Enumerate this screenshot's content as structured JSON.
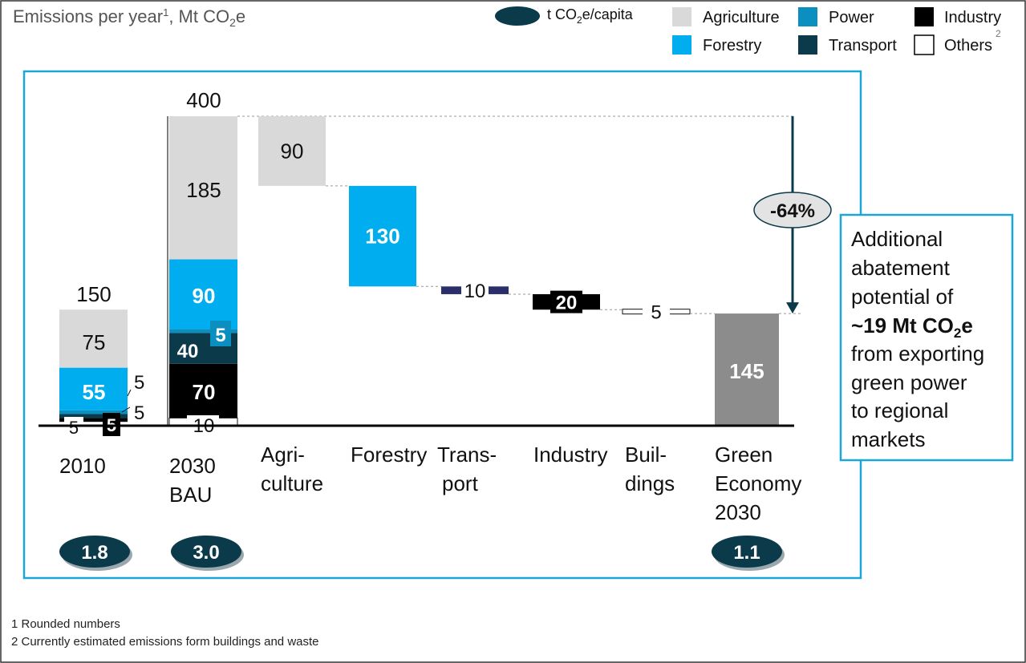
{
  "title": "Emissions per year",
  "title_sup": "1",
  "title_unit": "Mt CO",
  "title_unit_sub": "2",
  "title_unit_end": "e",
  "colors": {
    "agriculture": "#d9d9d9",
    "power": "#0a8fc0",
    "industry": "#000000",
    "forestry": "#00aeef",
    "transport": "#0b3a4b",
    "others": "#ffffff",
    "total": "#8c8c8c",
    "frame": "#1aa7d8",
    "capita": "#0b3a4b",
    "pct_badge": "#e3e3e3",
    "small_bar": "#2a2f6b"
  },
  "legend": {
    "capita_pre": "t CO",
    "capita_sub": "2",
    "capita_post": "e/capita",
    "agriculture": "Agriculture",
    "power": "Power",
    "industry": "Industry",
    "forestry": "Forestry",
    "transport": "Transport",
    "others": "Others",
    "others_sup": "2"
  },
  "chart_data": {
    "type": "bar",
    "subtype": "waterfall",
    "ylim": [
      0,
      400
    ],
    "categories": [
      "2010",
      "2030 BAU",
      "Agri-culture",
      "Forestry",
      "Trans-port",
      "Industry",
      "Buil-dings",
      "Green Economy 2030"
    ],
    "category_lines": [
      [
        "2010"
      ],
      [
        "2030",
        "BAU"
      ],
      [
        "Agri-",
        "culture"
      ],
      [
        "Forestry"
      ],
      [
        "Trans-",
        "port"
      ],
      [
        "Industry"
      ],
      [
        "Buil-",
        "dings"
      ],
      [
        "Green",
        "Economy",
        "2030"
      ]
    ],
    "stacks": {
      "2010": {
        "total": 150,
        "segments": [
          {
            "sector": "others",
            "value": 5,
            "label": "5"
          },
          {
            "sector": "industry",
            "value": 5,
            "label": "5"
          },
          {
            "sector": "transport",
            "value": 5,
            "label": "5"
          },
          {
            "sector": "power",
            "value": 5,
            "label": "5"
          },
          {
            "sector": "forestry",
            "value": 55,
            "label": "55"
          },
          {
            "sector": "agriculture",
            "value": 75,
            "label": "75"
          }
        ]
      },
      "2030 BAU": {
        "total": 400,
        "segments": [
          {
            "sector": "others",
            "value": 10,
            "label": "10"
          },
          {
            "sector": "industry",
            "value": 70,
            "label": "70"
          },
          {
            "sector": "transport",
            "value": 40,
            "label": "40"
          },
          {
            "sector": "power",
            "value": 5,
            "label": "5"
          },
          {
            "sector": "forestry",
            "value": 90,
            "label": "90"
          },
          {
            "sector": "agriculture",
            "value": 185,
            "label": "185"
          }
        ]
      }
    },
    "reductions": [
      {
        "category": "Agri-culture",
        "sector": "agriculture",
        "value": 90,
        "label": "90"
      },
      {
        "category": "Forestry",
        "sector": "forestry",
        "value": 130,
        "label": "130"
      },
      {
        "category": "Trans-port",
        "sector": "transport",
        "value": 10,
        "label": "10"
      },
      {
        "category": "Industry",
        "sector": "industry",
        "value": 20,
        "label": "20"
      },
      {
        "category": "Buil-dings",
        "sector": "others",
        "value": 5,
        "label": "5"
      }
    ],
    "result": {
      "category": "Green Economy 2030",
      "value": 145,
      "label": "145"
    },
    "per_capita": [
      {
        "category": "2010",
        "value": 1.8,
        "label": "1.8"
      },
      {
        "category": "2030 BAU",
        "value": 3.0,
        "label": "3.0"
      },
      {
        "category": "Green Economy 2030",
        "value": 1.1,
        "label": "1.1"
      }
    ],
    "change_label": "-64%",
    "annotation": {
      "lines": [
        "Additional",
        "abatement",
        "potential of"
      ],
      "bold_pre": "~19 Mt CO",
      "bold_sub": "2",
      "bold_post": "e",
      "tail_lines": [
        "from exporting",
        "green power",
        "to regional",
        "markets"
      ]
    }
  },
  "footnotes": [
    "1 Rounded numbers",
    "2 Currently estimated emissions form buildings and waste"
  ]
}
